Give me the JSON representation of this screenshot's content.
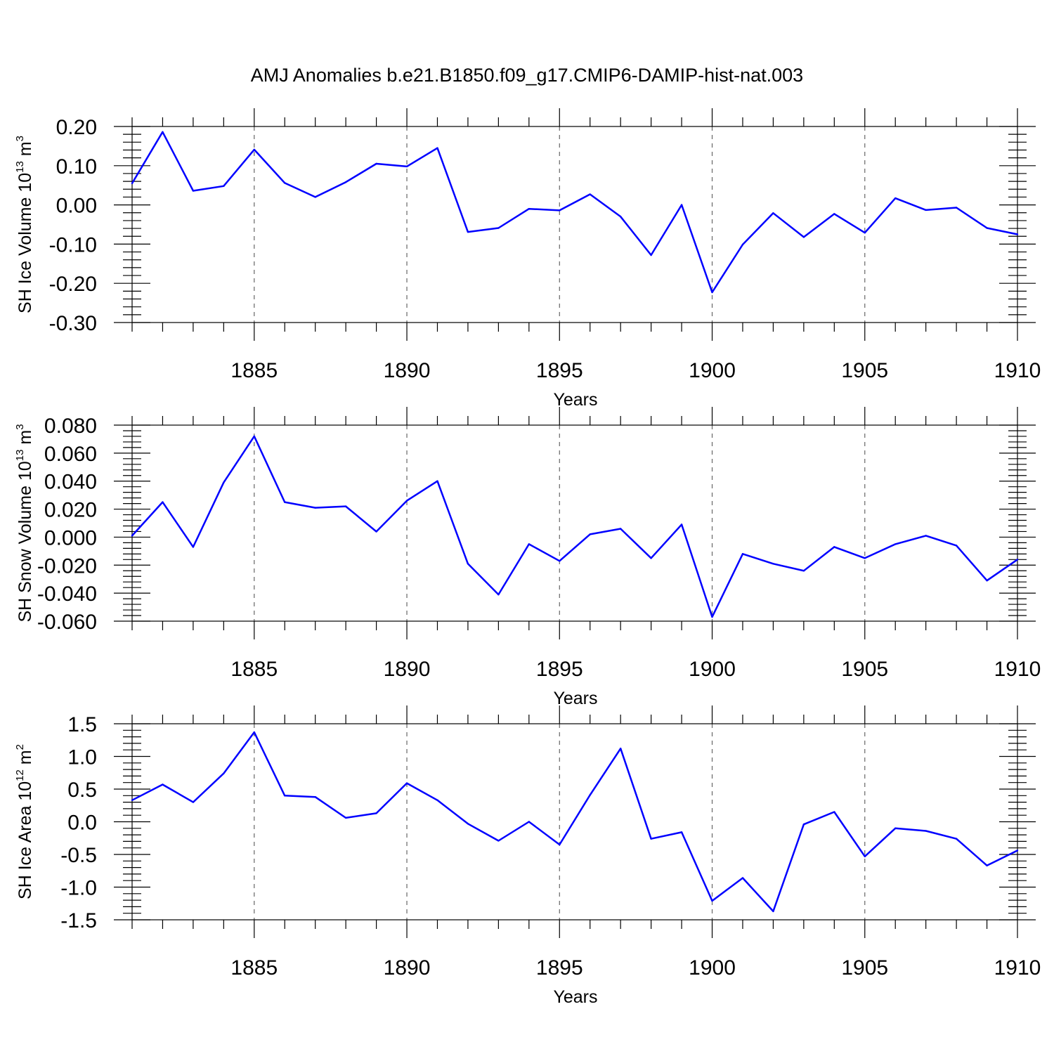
{
  "title": "AMJ Anomalies b.e21.B1850.f09_g17.CMIP6-DAMIP-hist-nat.003",
  "colors": {
    "line": "#0000ff",
    "axis": "#000000",
    "grid": "#666666"
  },
  "chart_data": [
    {
      "type": "line",
      "title": "AMJ Anomalies b.e21.B1850.f09_g17.CMIP6-DAMIP-hist-nat.003",
      "ylabel": "SH Ice Volume 10",
      "ylabel_exp": "13",
      "ylabel_unit": " m",
      "ylabel_unit_exp": "3",
      "xlabel": "Years",
      "xlim": [
        1881,
        1910
      ],
      "ylim": [
        -0.3,
        0.2
      ],
      "yticks": [
        0.2,
        0.1,
        0.0,
        -0.1,
        -0.2,
        -0.3
      ],
      "yticklabels": [
        "0.20",
        "0.10",
        "0.00",
        "-0.10",
        "-0.20",
        "-0.30"
      ],
      "xticks": [
        1885,
        1890,
        1895,
        1900,
        1905,
        1910
      ],
      "xticklabels": [
        "1885",
        "1890",
        "1895",
        "1900",
        "1905",
        "1910"
      ],
      "x": [
        1881,
        1882,
        1883,
        1884,
        1885,
        1886,
        1887,
        1888,
        1889,
        1890,
        1891,
        1892,
        1893,
        1894,
        1895,
        1896,
        1897,
        1898,
        1899,
        1900,
        1901,
        1902,
        1903,
        1904,
        1905,
        1906,
        1907,
        1908,
        1909,
        1910
      ],
      "series": [
        {
          "name": "SH Ice Volume",
          "values": [
            0.055,
            0.186,
            0.036,
            0.048,
            0.141,
            0.056,
            0.02,
            0.058,
            0.105,
            0.098,
            0.145,
            -0.069,
            -0.059,
            -0.01,
            -0.014,
            0.027,
            -0.03,
            -0.128,
            0.0,
            -0.223,
            -0.101,
            -0.021,
            -0.082,
            -0.023,
            -0.071,
            0.017,
            -0.013,
            -0.007,
            -0.059,
            -0.075
          ]
        }
      ],
      "grid": "dashed vertical at major x ticks"
    },
    {
      "type": "line",
      "ylabel": "SH Snow Volume 10",
      "ylabel_exp": "13",
      "ylabel_unit": " m",
      "ylabel_unit_exp": "3",
      "xlabel": "Years",
      "xlim": [
        1881,
        1910
      ],
      "ylim": [
        -0.06,
        0.08
      ],
      "yticks": [
        0.08,
        0.06,
        0.04,
        0.02,
        0.0,
        -0.02,
        -0.04,
        -0.06
      ],
      "yticklabels": [
        "0.080",
        "0.060",
        "0.040",
        "0.020",
        "0.000",
        "-0.020",
        "-0.040",
        "-0.060"
      ],
      "xticks": [
        1885,
        1890,
        1895,
        1900,
        1905,
        1910
      ],
      "xticklabels": [
        "1885",
        "1890",
        "1895",
        "1900",
        "1905",
        "1910"
      ],
      "x": [
        1881,
        1882,
        1883,
        1884,
        1885,
        1886,
        1887,
        1888,
        1889,
        1890,
        1891,
        1892,
        1893,
        1894,
        1895,
        1896,
        1897,
        1898,
        1899,
        1900,
        1901,
        1902,
        1903,
        1904,
        1905,
        1906,
        1907,
        1908,
        1909,
        1910
      ],
      "series": [
        {
          "name": "SH Snow Volume",
          "values": [
            0.001,
            0.025,
            -0.007,
            0.039,
            0.072,
            0.025,
            0.021,
            0.022,
            0.004,
            0.026,
            0.04,
            -0.019,
            -0.041,
            -0.005,
            -0.017,
            0.002,
            0.006,
            -0.015,
            0.009,
            -0.057,
            -0.012,
            -0.019,
            -0.024,
            -0.007,
            -0.015,
            -0.005,
            0.001,
            -0.006,
            -0.031,
            -0.016
          ]
        }
      ],
      "grid": "dashed vertical at major x ticks"
    },
    {
      "type": "line",
      "ylabel": "SH Ice Area 10",
      "ylabel_exp": "12",
      "ylabel_unit": " m",
      "ylabel_unit_exp": "2",
      "xlabel": "Years",
      "xlim": [
        1881,
        1910
      ],
      "ylim": [
        -1.5,
        1.5
      ],
      "yticks": [
        1.5,
        1.0,
        0.5,
        0.0,
        -0.5,
        -1.0,
        -1.5
      ],
      "yticklabels": [
        "1.5",
        "1.0",
        "0.5",
        "0.0",
        "-0.5",
        "-1.0",
        "-1.5"
      ],
      "xticks": [
        1885,
        1890,
        1895,
        1900,
        1905,
        1910
      ],
      "xticklabels": [
        "1885",
        "1890",
        "1895",
        "1900",
        "1905",
        "1910"
      ],
      "x": [
        1881,
        1882,
        1883,
        1884,
        1885,
        1886,
        1887,
        1888,
        1889,
        1890,
        1891,
        1892,
        1893,
        1894,
        1895,
        1896,
        1897,
        1898,
        1899,
        1900,
        1901,
        1902,
        1903,
        1904,
        1905,
        1906,
        1907,
        1908,
        1909,
        1910
      ],
      "series": [
        {
          "name": "SH Ice Area",
          "values": [
            0.33,
            0.57,
            0.3,
            0.74,
            1.37,
            0.4,
            0.38,
            0.06,
            0.13,
            0.59,
            0.33,
            -0.03,
            -0.29,
            0.0,
            -0.35,
            0.41,
            1.12,
            -0.26,
            -0.16,
            -1.21,
            -0.86,
            -1.37,
            -0.04,
            0.15,
            -0.53,
            -0.1,
            -0.14,
            -0.26,
            -0.67,
            -0.44
          ]
        }
      ],
      "grid": "dashed vertical at major x ticks"
    }
  ]
}
